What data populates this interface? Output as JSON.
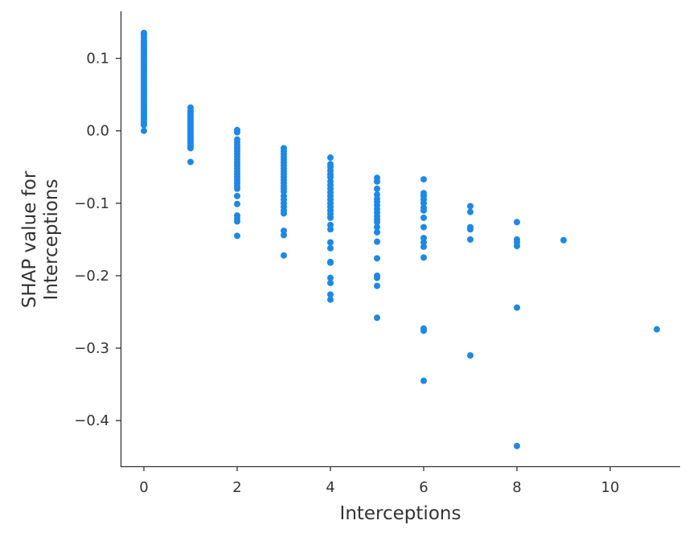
{
  "chart_data": {
    "type": "scatter",
    "title": "",
    "xlabel": "Interceptions",
    "ylabel_lines": [
      "SHAP value for",
      "Interceptions"
    ],
    "xlim": [
      -0.5,
      11.5
    ],
    "ylim": [
      -0.463,
      0.165
    ],
    "x_ticks": [
      0,
      2,
      4,
      6,
      8,
      10
    ],
    "x_tick_labels": [
      "0",
      "2",
      "4",
      "6",
      "8",
      "10"
    ],
    "y_ticks": [
      0.1,
      0.0,
      -0.1,
      -0.2,
      -0.3,
      -0.4
    ],
    "y_tick_labels": [
      "0.1",
      "0.0",
      "−0.1",
      "−0.2",
      "−0.3",
      "−0.4"
    ],
    "grid": false,
    "point_color": "#1e88e5",
    "series": [
      {
        "name": "Interceptions",
        "points": [
          [
            0,
            0.135
          ],
          [
            0,
            0.132
          ],
          [
            0,
            0.128
          ],
          [
            0,
            0.124
          ],
          [
            0,
            0.121
          ],
          [
            0,
            0.118
          ],
          [
            0,
            0.115
          ],
          [
            0,
            0.112
          ],
          [
            0,
            0.109
          ],
          [
            0,
            0.106
          ],
          [
            0,
            0.103
          ],
          [
            0,
            0.1
          ],
          [
            0,
            0.097
          ],
          [
            0,
            0.094
          ],
          [
            0,
            0.091
          ],
          [
            0,
            0.088
          ],
          [
            0,
            0.085
          ],
          [
            0,
            0.082
          ],
          [
            0,
            0.079
          ],
          [
            0,
            0.076
          ],
          [
            0,
            0.073
          ],
          [
            0,
            0.07
          ],
          [
            0,
            0.067
          ],
          [
            0,
            0.064
          ],
          [
            0,
            0.061
          ],
          [
            0,
            0.058
          ],
          [
            0,
            0.055
          ],
          [
            0,
            0.052
          ],
          [
            0,
            0.049
          ],
          [
            0,
            0.046
          ],
          [
            0,
            0.043
          ],
          [
            0,
            0.04
          ],
          [
            0,
            0.037
          ],
          [
            0,
            0.034
          ],
          [
            0,
            0.031
          ],
          [
            0,
            0.028
          ],
          [
            0,
            0.025
          ],
          [
            0,
            0.022
          ],
          [
            0,
            0.019
          ],
          [
            0,
            0.016
          ],
          [
            0,
            0.013
          ],
          [
            0,
            0.01
          ],
          [
            0,
            0.008
          ],
          [
            0,
            0.0
          ],
          [
            1,
            0.032
          ],
          [
            1,
            0.027
          ],
          [
            1,
            0.024
          ],
          [
            1,
            0.021
          ],
          [
            1,
            0.018
          ],
          [
            1,
            0.015
          ],
          [
            1,
            0.012
          ],
          [
            1,
            0.009
          ],
          [
            1,
            0.006
          ],
          [
            1,
            0.003
          ],
          [
            1,
            0.0
          ],
          [
            1,
            -0.003
          ],
          [
            1,
            -0.006
          ],
          [
            1,
            -0.009
          ],
          [
            1,
            -0.012
          ],
          [
            1,
            -0.015
          ],
          [
            1,
            -0.018
          ],
          [
            1,
            -0.021
          ],
          [
            1,
            -0.024
          ],
          [
            1,
            -0.043
          ],
          [
            2,
            0.001
          ],
          [
            2,
            -0.002
          ],
          [
            2,
            -0.012
          ],
          [
            2,
            -0.016
          ],
          [
            2,
            -0.02
          ],
          [
            2,
            -0.024
          ],
          [
            2,
            -0.028
          ],
          [
            2,
            -0.032
          ],
          [
            2,
            -0.036
          ],
          [
            2,
            -0.04
          ],
          [
            2,
            -0.044
          ],
          [
            2,
            -0.048
          ],
          [
            2,
            -0.052
          ],
          [
            2,
            -0.056
          ],
          [
            2,
            -0.06
          ],
          [
            2,
            -0.064
          ],
          [
            2,
            -0.068
          ],
          [
            2,
            -0.072
          ],
          [
            2,
            -0.076
          ],
          [
            2,
            -0.08
          ],
          [
            2,
            -0.09
          ],
          [
            2,
            -0.101
          ],
          [
            2,
            -0.117
          ],
          [
            2,
            -0.121
          ],
          [
            2,
            -0.125
          ],
          [
            2,
            -0.145
          ],
          [
            3,
            -0.024
          ],
          [
            3,
            -0.028
          ],
          [
            3,
            -0.032
          ],
          [
            3,
            -0.036
          ],
          [
            3,
            -0.04
          ],
          [
            3,
            -0.044
          ],
          [
            3,
            -0.048
          ],
          [
            3,
            -0.052
          ],
          [
            3,
            -0.056
          ],
          [
            3,
            -0.06
          ],
          [
            3,
            -0.064
          ],
          [
            3,
            -0.068
          ],
          [
            3,
            -0.072
          ],
          [
            3,
            -0.076
          ],
          [
            3,
            -0.08
          ],
          [
            3,
            -0.084
          ],
          [
            3,
            -0.09
          ],
          [
            3,
            -0.095
          ],
          [
            3,
            -0.1
          ],
          [
            3,
            -0.105
          ],
          [
            3,
            -0.11
          ],
          [
            3,
            -0.114
          ],
          [
            3,
            -0.138
          ],
          [
            3,
            -0.144
          ],
          [
            3,
            -0.172
          ],
          [
            4,
            -0.037
          ],
          [
            4,
            -0.046
          ],
          [
            4,
            -0.05
          ],
          [
            4,
            -0.055
          ],
          [
            4,
            -0.06
          ],
          [
            4,
            -0.064
          ],
          [
            4,
            -0.07
          ],
          [
            4,
            -0.075
          ],
          [
            4,
            -0.08
          ],
          [
            4,
            -0.085
          ],
          [
            4,
            -0.09
          ],
          [
            4,
            -0.095
          ],
          [
            4,
            -0.1
          ],
          [
            4,
            -0.105
          ],
          [
            4,
            -0.11
          ],
          [
            4,
            -0.115
          ],
          [
            4,
            -0.12
          ],
          [
            4,
            -0.13
          ],
          [
            4,
            -0.136
          ],
          [
            4,
            -0.154
          ],
          [
            4,
            -0.162
          ],
          [
            4,
            -0.181
          ],
          [
            4,
            -0.182
          ],
          [
            4,
            -0.203
          ],
          [
            4,
            -0.21
          ],
          [
            4,
            -0.226
          ],
          [
            4,
            -0.233
          ],
          [
            5,
            -0.065
          ],
          [
            5,
            -0.07
          ],
          [
            5,
            -0.08
          ],
          [
            5,
            -0.088
          ],
          [
            5,
            -0.094
          ],
          [
            5,
            -0.098
          ],
          [
            5,
            -0.103
          ],
          [
            5,
            -0.108
          ],
          [
            5,
            -0.113
          ],
          [
            5,
            -0.118
          ],
          [
            5,
            -0.122
          ],
          [
            5,
            -0.126
          ],
          [
            5,
            -0.133
          ],
          [
            5,
            -0.14
          ],
          [
            5,
            -0.153
          ],
          [
            5,
            -0.176
          ],
          [
            5,
            -0.2
          ],
          [
            5,
            -0.203
          ],
          [
            5,
            -0.214
          ],
          [
            5,
            -0.258
          ],
          [
            6,
            -0.067
          ],
          [
            6,
            -0.086
          ],
          [
            6,
            -0.09
          ],
          [
            6,
            -0.095
          ],
          [
            6,
            -0.1
          ],
          [
            6,
            -0.106
          ],
          [
            6,
            -0.11
          ],
          [
            6,
            -0.12
          ],
          [
            6,
            -0.133
          ],
          [
            6,
            -0.148
          ],
          [
            6,
            -0.154
          ],
          [
            6,
            -0.16
          ],
          [
            6,
            -0.175
          ],
          [
            6,
            -0.273
          ],
          [
            6,
            -0.276
          ],
          [
            6,
            -0.345
          ],
          [
            7,
            -0.104
          ],
          [
            7,
            -0.112
          ],
          [
            7,
            -0.133
          ],
          [
            7,
            -0.136
          ],
          [
            7,
            -0.15
          ],
          [
            7,
            -0.31
          ],
          [
            8,
            -0.126
          ],
          [
            8,
            -0.15
          ],
          [
            8,
            -0.154
          ],
          [
            8,
            -0.159
          ],
          [
            8,
            -0.244
          ],
          [
            8,
            -0.435
          ],
          [
            9,
            -0.151
          ],
          [
            11,
            -0.274
          ]
        ]
      }
    ]
  }
}
